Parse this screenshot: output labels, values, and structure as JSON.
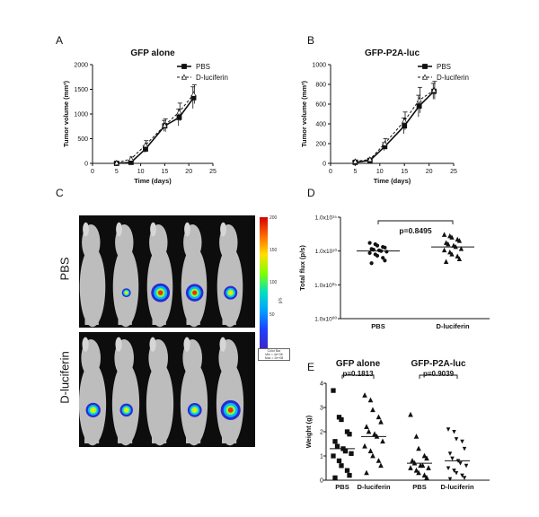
{
  "panel_labels": [
    "A",
    "B",
    "C",
    "D",
    "E"
  ],
  "photo": {
    "row_labels": [
      "PBS",
      "D-luciferin"
    ],
    "colorbar_ticks": [
      "200",
      "150",
      "100",
      "50"
    ],
    "colorbar_unit": "p/s",
    "colorbar_caption": [
      "Color Bar",
      "Min = 4e+06",
      "Max = 2e+08"
    ],
    "colors": {
      "background": "#0d0d0d",
      "mouse": "#bdbdbd"
    }
  },
  "chart_data": [
    {
      "id": "A",
      "type": "line",
      "title": "GFP alone",
      "xlabel": "Time (days)",
      "ylabel": "Tumor volume (mm³)",
      "xlim": [
        0,
        25
      ],
      "ylim": [
        0,
        2000
      ],
      "xticks": [
        "0",
        "5",
        "10",
        "15",
        "20",
        "25"
      ],
      "yticks": [
        "0",
        "500",
        "1000",
        "1500",
        "2000"
      ],
      "legend_position": "top-right",
      "x": [
        5,
        8,
        11,
        15,
        18,
        21
      ],
      "series": [
        {
          "name": "PBS",
          "marker": "square",
          "dash": false,
          "values": [
            0,
            20,
            290,
            760,
            930,
            1330
          ],
          "err": [
            20,
            30,
            70,
            110,
            170,
            220
          ]
        },
        {
          "name": "D-luciferin",
          "marker": "triangle",
          "dash": true,
          "values": [
            10,
            90,
            370,
            770,
            1040,
            1400
          ],
          "err": [
            20,
            40,
            90,
            130,
            180,
            190
          ]
        }
      ]
    },
    {
      "id": "B",
      "type": "line",
      "title": "GFP-P2A-luc",
      "xlabel": "Time (days)",
      "ylabel": "Tumor volume (mm³)",
      "xlim": [
        0,
        25
      ],
      "ylim": [
        0,
        1000
      ],
      "xticks": [
        "0",
        "5",
        "10",
        "15",
        "20",
        "25"
      ],
      "yticks": [
        "0",
        "200",
        "400",
        "600",
        "800",
        "1000"
      ],
      "legend_position": "top-right",
      "x": [
        5,
        8,
        11,
        15,
        18,
        21
      ],
      "series": [
        {
          "name": "PBS",
          "marker": "square",
          "dash": false,
          "values": [
            10,
            30,
            170,
            380,
            580,
            730
          ],
          "err": [
            10,
            15,
            40,
            80,
            110,
            80
          ]
        },
        {
          "name": "D-luciferin",
          "marker": "triangle",
          "dash": true,
          "values": [
            20,
            40,
            200,
            430,
            640,
            740
          ],
          "err": [
            15,
            15,
            50,
            90,
            130,
            90
          ]
        }
      ]
    },
    {
      "id": "D",
      "type": "scatter",
      "ylabel": "Total flux (p/s)",
      "log_scale": true,
      "yticks": [
        "1.0x10⁰⁰",
        "1.0x10⁰⁵",
        "1.0x10¹⁰",
        "1.0x10¹⁵"
      ],
      "ytick_values": [
        0,
        5,
        10,
        15
      ],
      "ylim_log10": [
        0,
        15
      ],
      "categories": [
        "PBS",
        "D-luciferin"
      ],
      "annotation": "p=0.8495",
      "groups": [
        {
          "name": "PBS",
          "marker": "circle",
          "mean": 10.0,
          "values": [
            11.2,
            11.0,
            10.8,
            10.6,
            10.5,
            10.3,
            10.2,
            10.1,
            10.0,
            9.9,
            9.7,
            9.5,
            9.3,
            9.0,
            8.6,
            8.2
          ]
        },
        {
          "name": "D-luciferin",
          "marker": "triangle",
          "mean": 10.6,
          "values": [
            12.4,
            12.2,
            12.0,
            11.7,
            11.5,
            11.2,
            11.0,
            10.8,
            10.6,
            10.3,
            10.1,
            9.8,
            9.5,
            9.2,
            8.8,
            8.4
          ]
        }
      ]
    },
    {
      "id": "E",
      "type": "scatter",
      "ylabel": "Weight (g)",
      "ylim": [
        0,
        4
      ],
      "yticks": [
        "0",
        "1",
        "2",
        "3",
        "4"
      ],
      "categories": [
        "PBS",
        "D-luciferin",
        "PBS",
        "D-luciferin"
      ],
      "group_titles": [
        {
          "label": "GFP alone",
          "over": [
            0,
            1
          ]
        },
        {
          "label": "GFP-P2A-luc",
          "over": [
            2,
            3
          ]
        }
      ],
      "annotations": [
        {
          "label": "p=0.1813",
          "between": [
            0,
            1
          ]
        },
        {
          "label": "p=0.9039",
          "between": [
            2,
            3
          ]
        }
      ],
      "groups": [
        {
          "name": "PBS",
          "marker": "square",
          "mean": 1.3,
          "values": [
            3.7,
            2.6,
            2.5,
            2.0,
            1.9,
            1.6,
            1.4,
            1.3,
            1.2,
            1.1,
            1.0,
            0.8,
            0.6,
            0.4,
            0.2,
            0.1
          ]
        },
        {
          "name": "D-luciferin",
          "marker": "triangle",
          "mean": 1.8,
          "values": [
            3.5,
            3.3,
            2.9,
            2.6,
            2.4,
            2.2,
            2.0,
            1.9,
            1.8,
            1.6,
            1.4,
            1.2,
            1.0,
            0.8,
            0.6,
            0.3
          ]
        },
        {
          "name": "PBS",
          "marker": "triangle",
          "mean": 0.7,
          "values": [
            2.7,
            1.8,
            1.3,
            1.0,
            0.9,
            0.8,
            0.7,
            0.6,
            0.6,
            0.5,
            0.5,
            0.4,
            0.3,
            0.2,
            0.1
          ]
        },
        {
          "name": "D-luciferin",
          "marker": "triangle_down",
          "mean": 0.8,
          "values": [
            2.1,
            2.0,
            1.7,
            1.6,
            1.3,
            1.1,
            0.9,
            0.8,
            0.7,
            0.6,
            0.5,
            0.4,
            0.3,
            0.2,
            0.1,
            0.05
          ]
        }
      ]
    }
  ]
}
